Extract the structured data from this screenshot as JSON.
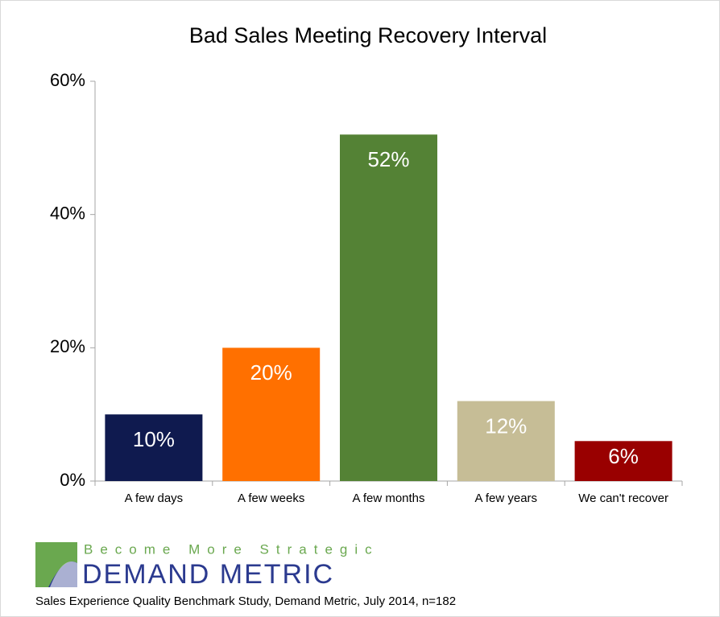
{
  "chart_data": {
    "type": "bar",
    "title": "Bad Sales Meeting Recovery Interval",
    "categories": [
      "A few days",
      "A few weeks",
      "A few months",
      "A few years",
      "We can't recover"
    ],
    "values": [
      10,
      20,
      52,
      12,
      6
    ],
    "value_labels": [
      "10%",
      "20%",
      "52%",
      "12%",
      "6%"
    ],
    "colors": [
      "#0f1a4f",
      "#ff7000",
      "#548235",
      "#c6bd96",
      "#990000"
    ],
    "ylim": [
      0,
      60
    ],
    "yticks": [
      {
        "value": 0,
        "label": "0%"
      },
      {
        "value": 20,
        "label": "20%"
      },
      {
        "value": 40,
        "label": "40%"
      },
      {
        "value": 60,
        "label": "60%"
      }
    ],
    "grid": false,
    "tagline": "Become More Strategic",
    "brand": "DEMAND METRIC",
    "source": "Sales Experience Quality Benchmark Study, Demand Metric, July 2014, n=182"
  }
}
